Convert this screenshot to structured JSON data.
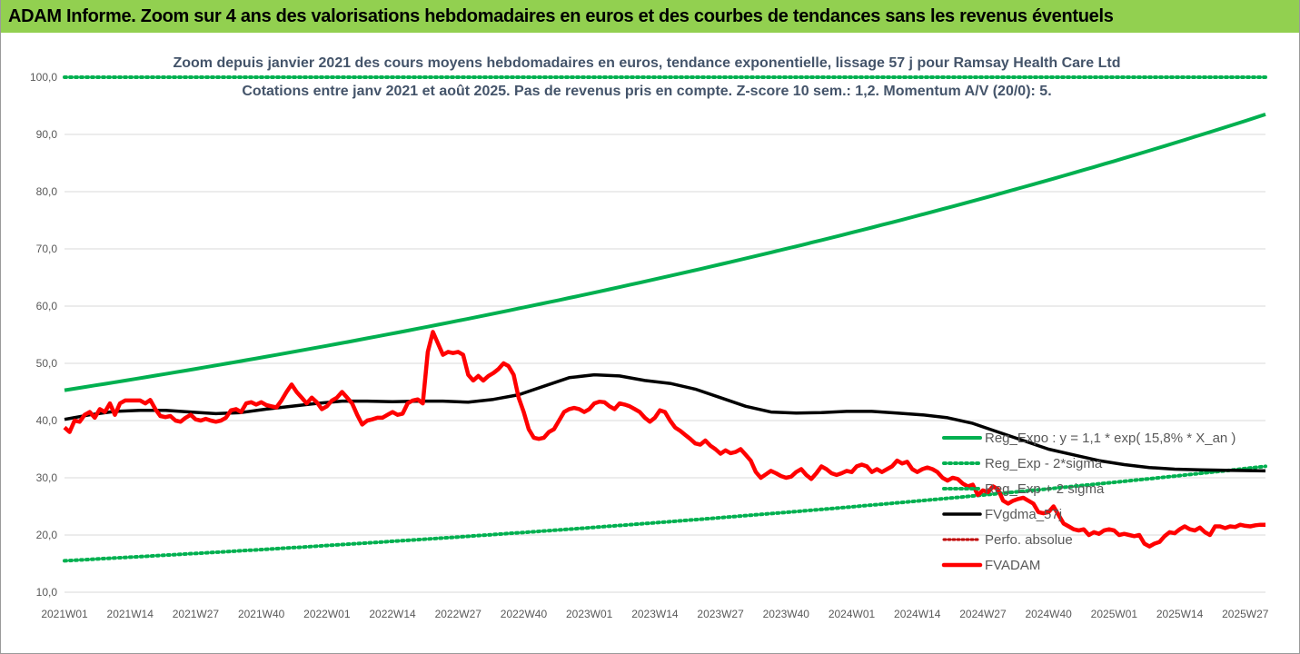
{
  "header": {
    "title": "ADAM Informe. Zoom sur 4 ans des valorisations hebdomadaires en euros et des courbes de tendances sans les revenus éventuels"
  },
  "colors": {
    "header_bg": "#92d050",
    "reg_expo": "#00b050",
    "fvgdma": "#000000",
    "fvadam": "#ff0000",
    "perfo": "#c00000"
  },
  "chart_data": {
    "type": "line",
    "title": "Zoom depuis janvier 2021 des cours moyens hebdomadaires en euros, tendance exponentielle, lissage 57 j pour Ramsay Health Care Ltd",
    "subtitle": "Cotations entre janv 2021 et août 2025.  Pas de revenus pris en compte. Z-score 10 sem.: 1,2. Momentum A/V (20/0): 5.",
    "xlabel": "",
    "ylabel": "",
    "ylim": [
      10,
      100
    ],
    "y_ticks": [
      "10,0",
      "20,0",
      "30,0",
      "40,0",
      "50,0",
      "60,0",
      "70,0",
      "80,0",
      "90,0",
      "100,0"
    ],
    "x_ticks": [
      "2021W01",
      "2021W14",
      "2021W27",
      "2021W40",
      "2022W01",
      "2022W14",
      "2022W27",
      "2022W40",
      "2023W01",
      "2023W14",
      "2023W27",
      "2023W40",
      "2024W01",
      "2024W14",
      "2024W27",
      "2024W40",
      "2025W01",
      "2025W14",
      "2025W27"
    ],
    "x_range_weeks": [
      0,
      238
    ],
    "grid": true,
    "legend_position": "right",
    "series": [
      {
        "name": "Reg_Expo : y = 1,1 * exp( 15,8% *  X_an )",
        "style": "solid",
        "points": [
          [
            0,
            45.3
          ],
          [
            238,
            93.5
          ]
        ],
        "growth": "exponential"
      },
      {
        "name": "Reg_Exp - 2*sigma",
        "style": "dotted",
        "points": [
          [
            0,
            15.5
          ],
          [
            238,
            32.0
          ]
        ],
        "growth": "exponential"
      },
      {
        "name": "Reg_Exp + 2 sigma",
        "style": "dotted",
        "points": [
          [
            0,
            100.0
          ],
          [
            238,
            100.0
          ]
        ],
        "note_visible": "clipped at top"
      },
      {
        "name": "FVgdma_57j",
        "style": "solid",
        "points": [
          [
            0,
            40.2
          ],
          [
            5,
            41.0
          ],
          [
            10,
            41.6
          ],
          [
            15,
            41.8
          ],
          [
            20,
            41.8
          ],
          [
            25,
            41.5
          ],
          [
            30,
            41.2
          ],
          [
            35,
            41.4
          ],
          [
            40,
            42.0
          ],
          [
            45,
            42.5
          ],
          [
            50,
            43.0
          ],
          [
            55,
            43.4
          ],
          [
            60,
            43.4
          ],
          [
            65,
            43.3
          ],
          [
            70,
            43.4
          ],
          [
            75,
            43.4
          ],
          [
            80,
            43.2
          ],
          [
            85,
            43.7
          ],
          [
            90,
            44.5
          ],
          [
            95,
            46.0
          ],
          [
            100,
            47.5
          ],
          [
            105,
            48.0
          ],
          [
            110,
            47.8
          ],
          [
            115,
            47.0
          ],
          [
            120,
            46.5
          ],
          [
            125,
            45.5
          ],
          [
            130,
            44.0
          ],
          [
            135,
            42.5
          ],
          [
            140,
            41.5
          ],
          [
            145,
            41.3
          ],
          [
            150,
            41.4
          ],
          [
            155,
            41.6
          ],
          [
            160,
            41.6
          ],
          [
            165,
            41.3
          ],
          [
            170,
            41.0
          ],
          [
            175,
            40.5
          ],
          [
            180,
            39.5
          ],
          [
            185,
            38.0
          ],
          [
            190,
            36.5
          ],
          [
            195,
            35.0
          ],
          [
            200,
            34.0
          ],
          [
            205,
            33.0
          ],
          [
            210,
            32.3
          ],
          [
            215,
            31.8
          ],
          [
            220,
            31.5
          ],
          [
            225,
            31.4
          ],
          [
            230,
            31.3
          ],
          [
            238,
            31.2
          ]
        ]
      },
      {
        "name": "Perfo. absolue",
        "style": "dotted",
        "points": []
      },
      {
        "name": "FVADAM",
        "style": "solid",
        "points": [
          [
            0,
            38.8
          ],
          [
            1,
            38.0
          ],
          [
            2,
            40.0
          ],
          [
            3,
            39.8
          ],
          [
            4,
            41.0
          ],
          [
            5,
            41.5
          ],
          [
            6,
            40.5
          ],
          [
            7,
            42.0
          ],
          [
            8,
            41.5
          ],
          [
            9,
            43.0
          ],
          [
            10,
            41.0
          ],
          [
            11,
            43.0
          ],
          [
            12,
            43.5
          ],
          [
            13,
            43.5
          ],
          [
            14,
            43.5
          ],
          [
            15,
            43.5
          ],
          [
            16,
            43.0
          ],
          [
            17,
            43.6
          ],
          [
            18,
            42.0
          ],
          [
            19,
            40.8
          ],
          [
            20,
            40.6
          ],
          [
            21,
            40.8
          ],
          [
            22,
            40.0
          ],
          [
            23,
            39.8
          ],
          [
            24,
            40.5
          ],
          [
            25,
            41.0
          ],
          [
            26,
            40.2
          ],
          [
            27,
            40.0
          ],
          [
            28,
            40.3
          ],
          [
            29,
            40.0
          ],
          [
            30,
            39.8
          ],
          [
            31,
            40.0
          ],
          [
            32,
            40.5
          ],
          [
            33,
            41.8
          ],
          [
            34,
            42.0
          ],
          [
            35,
            41.5
          ],
          [
            36,
            43.0
          ],
          [
            37,
            43.2
          ],
          [
            38,
            42.8
          ],
          [
            39,
            43.2
          ],
          [
            40,
            42.7
          ],
          [
            41,
            42.5
          ],
          [
            42,
            42.3
          ],
          [
            43,
            43.5
          ],
          [
            44,
            45.0
          ],
          [
            45,
            46.3
          ],
          [
            46,
            45.0
          ],
          [
            47,
            44.0
          ],
          [
            48,
            43.0
          ],
          [
            49,
            44.0
          ],
          [
            50,
            43.2
          ],
          [
            51,
            42.0
          ],
          [
            52,
            42.5
          ],
          [
            53,
            43.5
          ],
          [
            54,
            44.0
          ],
          [
            55,
            45.0
          ],
          [
            56,
            44.0
          ],
          [
            57,
            43.0
          ],
          [
            58,
            41.0
          ],
          [
            59,
            39.3
          ],
          [
            60,
            40.0
          ],
          [
            61,
            40.2
          ],
          [
            62,
            40.5
          ],
          [
            63,
            40.5
          ],
          [
            64,
            41.0
          ],
          [
            65,
            41.5
          ],
          [
            66,
            41.0
          ],
          [
            67,
            41.2
          ],
          [
            68,
            43.0
          ],
          [
            69,
            43.5
          ],
          [
            70,
            43.7
          ],
          [
            71,
            43.0
          ],
          [
            72,
            52.0
          ],
          [
            73,
            55.5
          ],
          [
            74,
            53.5
          ],
          [
            75,
            51.5
          ],
          [
            76,
            52.0
          ],
          [
            77,
            51.8
          ],
          [
            78,
            52.0
          ],
          [
            79,
            51.5
          ],
          [
            80,
            48.0
          ],
          [
            81,
            47.0
          ],
          [
            82,
            47.8
          ],
          [
            83,
            47.0
          ],
          [
            84,
            47.8
          ],
          [
            85,
            48.3
          ],
          [
            86,
            49.0
          ],
          [
            87,
            50.0
          ],
          [
            88,
            49.5
          ],
          [
            89,
            48.0
          ],
          [
            90,
            44.0
          ],
          [
            91,
            41.5
          ],
          [
            92,
            38.5
          ],
          [
            93,
            37.0
          ],
          [
            94,
            36.8
          ],
          [
            95,
            37.0
          ],
          [
            96,
            38.0
          ],
          [
            97,
            38.5
          ],
          [
            98,
            40.0
          ],
          [
            99,
            41.5
          ],
          [
            100,
            42.0
          ],
          [
            101,
            42.2
          ],
          [
            102,
            42.0
          ],
          [
            103,
            41.5
          ],
          [
            104,
            42.0
          ],
          [
            105,
            43.0
          ],
          [
            106,
            43.3
          ],
          [
            107,
            43.2
          ],
          [
            108,
            42.5
          ],
          [
            109,
            42.0
          ],
          [
            110,
            43.0
          ],
          [
            111,
            42.8
          ],
          [
            112,
            42.5
          ],
          [
            113,
            42.0
          ],
          [
            114,
            41.5
          ],
          [
            115,
            40.5
          ],
          [
            116,
            39.8
          ],
          [
            117,
            40.5
          ],
          [
            118,
            41.8
          ],
          [
            119,
            41.5
          ],
          [
            120,
            40.0
          ],
          [
            121,
            38.8
          ],
          [
            122,
            38.2
          ],
          [
            123,
            37.5
          ],
          [
            124,
            36.8
          ],
          [
            125,
            36.0
          ],
          [
            126,
            35.8
          ],
          [
            127,
            36.5
          ],
          [
            128,
            35.6
          ],
          [
            129,
            35.0
          ],
          [
            130,
            34.2
          ],
          [
            131,
            34.8
          ],
          [
            132,
            34.3
          ],
          [
            133,
            34.5
          ],
          [
            134,
            35.0
          ],
          [
            135,
            34.0
          ],
          [
            136,
            33.0
          ],
          [
            137,
            31.0
          ],
          [
            138,
            30.0
          ],
          [
            139,
            30.6
          ],
          [
            140,
            31.2
          ],
          [
            141,
            30.8
          ],
          [
            142,
            30.3
          ],
          [
            143,
            30.0
          ],
          [
            144,
            30.2
          ],
          [
            145,
            31.0
          ],
          [
            146,
            31.5
          ],
          [
            147,
            30.5
          ],
          [
            148,
            29.8
          ],
          [
            149,
            30.8
          ],
          [
            150,
            32.0
          ],
          [
            151,
            31.5
          ],
          [
            152,
            30.8
          ],
          [
            153,
            30.5
          ],
          [
            154,
            30.8
          ],
          [
            155,
            31.2
          ],
          [
            156,
            31.0
          ],
          [
            157,
            32.0
          ],
          [
            158,
            32.3
          ],
          [
            159,
            32.0
          ],
          [
            160,
            31.0
          ],
          [
            161,
            31.5
          ],
          [
            162,
            31.0
          ],
          [
            163,
            31.5
          ],
          [
            164,
            32.0
          ],
          [
            165,
            33.0
          ],
          [
            166,
            32.5
          ],
          [
            167,
            32.8
          ],
          [
            168,
            31.5
          ],
          [
            169,
            31.0
          ],
          [
            170,
            31.5
          ],
          [
            171,
            31.8
          ],
          [
            172,
            31.5
          ],
          [
            173,
            31.0
          ],
          [
            174,
            30.0
          ],
          [
            175,
            29.5
          ],
          [
            176,
            30.0
          ],
          [
            177,
            29.8
          ],
          [
            178,
            29.0
          ],
          [
            179,
            28.5
          ],
          [
            180,
            28.8
          ],
          [
            181,
            27.0
          ],
          [
            182,
            27.8
          ],
          [
            183,
            27.5
          ],
          [
            184,
            28.5
          ],
          [
            185,
            28.0
          ],
          [
            186,
            26.0
          ],
          [
            187,
            25.5
          ],
          [
            188,
            26.0
          ],
          [
            189,
            26.3
          ],
          [
            190,
            26.5
          ],
          [
            191,
            26.0
          ],
          [
            192,
            25.5
          ],
          [
            193,
            24.0
          ],
          [
            194,
            23.8
          ],
          [
            195,
            24.0
          ],
          [
            196,
            25.0
          ],
          [
            197,
            23.5
          ],
          [
            198,
            22.0
          ],
          [
            199,
            21.5
          ],
          [
            200,
            21.0
          ],
          [
            201,
            20.8
          ],
          [
            202,
            21.0
          ],
          [
            203,
            20.0
          ],
          [
            204,
            20.5
          ],
          [
            205,
            20.2
          ],
          [
            206,
            20.8
          ],
          [
            207,
            21.0
          ],
          [
            208,
            20.8
          ],
          [
            209,
            20.0
          ],
          [
            210,
            20.2
          ],
          [
            211,
            20.0
          ],
          [
            212,
            19.8
          ],
          [
            213,
            20.0
          ],
          [
            214,
            18.5
          ],
          [
            215,
            18.0
          ],
          [
            216,
            18.5
          ],
          [
            217,
            18.8
          ],
          [
            218,
            19.8
          ],
          [
            219,
            20.5
          ],
          [
            220,
            20.3
          ],
          [
            221,
            21.0
          ],
          [
            222,
            21.5
          ],
          [
            223,
            21.0
          ],
          [
            224,
            20.8
          ],
          [
            225,
            21.3
          ],
          [
            226,
            20.5
          ],
          [
            227,
            20.0
          ],
          [
            228,
            21.5
          ],
          [
            229,
            21.5
          ],
          [
            230,
            21.2
          ],
          [
            231,
            21.5
          ],
          [
            232,
            21.4
          ],
          [
            233,
            21.8
          ],
          [
            234,
            21.6
          ],
          [
            235,
            21.5
          ],
          [
            236,
            21.7
          ],
          [
            237,
            21.8
          ],
          [
            238,
            21.8
          ]
        ]
      }
    ]
  }
}
